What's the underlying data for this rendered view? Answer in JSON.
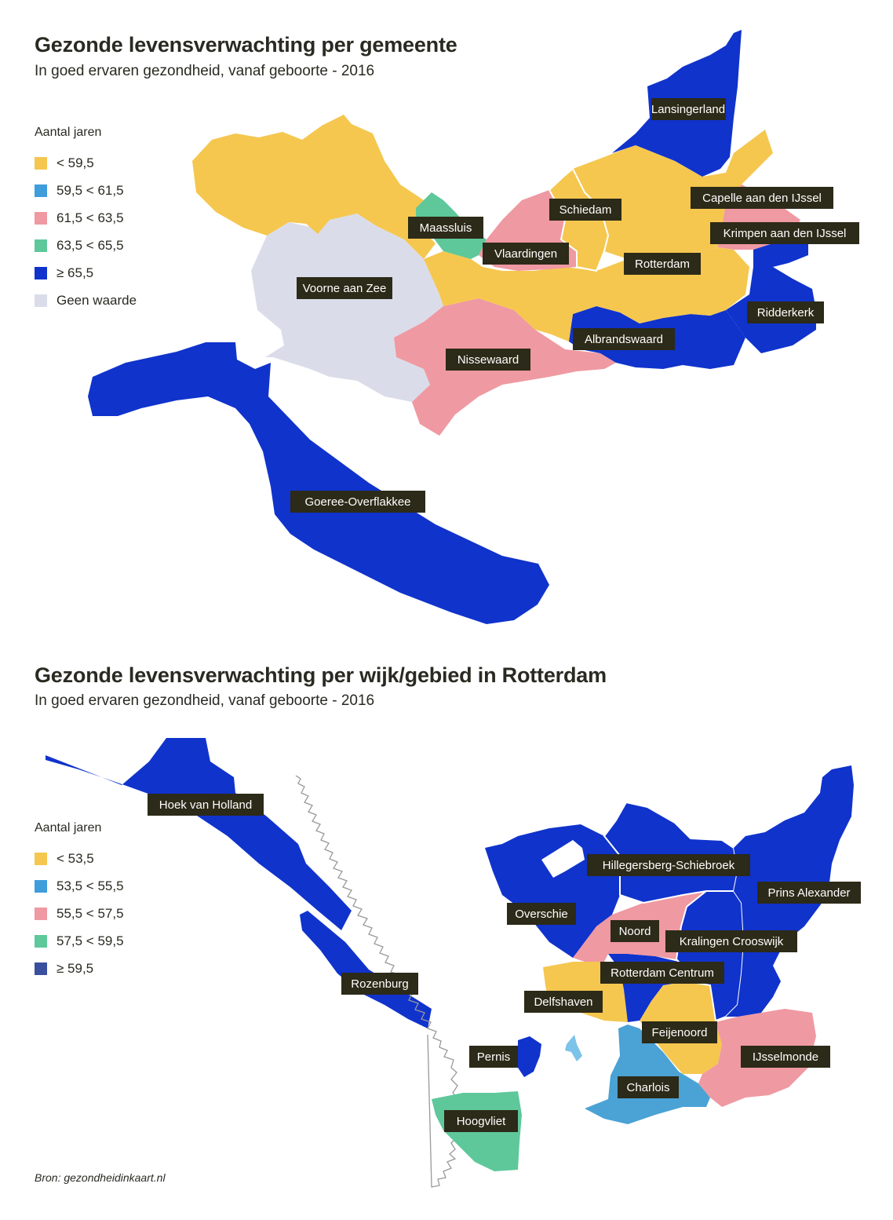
{
  "map1": {
    "title": "Gezonde levensverwachting per gemeente",
    "subtitle": "In goed ervaren gezondheid, vanaf geboorte - 2016",
    "legend_title": "Aantal jaren",
    "legend": [
      {
        "label": "< 59,5",
        "color": "#f5c74f"
      },
      {
        "label": "59,5 < 61,5",
        "color": "#3f9ddb"
      },
      {
        "label": "61,5 < 63,5",
        "color": "#ef99a2"
      },
      {
        "label": "63,5 < 65,5",
        "color": "#5ec89a"
      },
      {
        "label": "≥ 65,5",
        "color": "#1033cc"
      },
      {
        "label": "Geen waarde",
        "color": "#dadde9"
      }
    ],
    "regions": [
      {
        "name": "Lansingerland",
        "class": "≥ 65,5"
      },
      {
        "name": "Schiedam",
        "class": "< 59,5"
      },
      {
        "name": "Capelle aan den IJssel",
        "class": "61,5 < 63,5"
      },
      {
        "name": "Maassluis",
        "class": "63,5 < 65,5"
      },
      {
        "name": "Krimpen aan den IJssel",
        "class": "≥ 65,5"
      },
      {
        "name": "Vlaardingen",
        "class": "61,5 < 63,5"
      },
      {
        "name": "Rotterdam",
        "class": "< 59,5"
      },
      {
        "name": "Voorne aan Zee",
        "class": "Geen waarde"
      },
      {
        "name": "Ridderkerk",
        "class": "≥ 65,5"
      },
      {
        "name": "Albrandswaard",
        "class": "≥ 65,5"
      },
      {
        "name": "Nissewaard",
        "class": "61,5 < 63,5"
      },
      {
        "name": "Goeree-Overflakkee",
        "class": "≥ 65,5"
      }
    ]
  },
  "map2": {
    "title": "Gezonde levensverwachting per wijk/gebied in Rotterdam",
    "subtitle": "In goed ervaren gezondheid, vanaf geboorte - 2016",
    "legend_title": "Aantal jaren",
    "legend": [
      {
        "label": "< 53,5",
        "color": "#f5c74f"
      },
      {
        "label": "53,5 < 55,5",
        "color": "#3f9ddb"
      },
      {
        "label": "55,5 < 57,5",
        "color": "#ef99a2"
      },
      {
        "label": "57,5 < 59,5",
        "color": "#5ec89a"
      },
      {
        "label": "≥ 59,5",
        "color": "#3a4f9e"
      }
    ],
    "regions": [
      {
        "name": "Hoek van Holland",
        "class": "≥ 59,5"
      },
      {
        "name": "Hillegersberg-Schiebroek",
        "class": "≥ 59,5"
      },
      {
        "name": "Prins Alexander",
        "class": "≥ 59,5"
      },
      {
        "name": "Overschie",
        "class": "≥ 59,5"
      },
      {
        "name": "Noord",
        "class": "55,5 < 57,5"
      },
      {
        "name": "Kralingen Crooswijk",
        "class": "≥ 59,5"
      },
      {
        "name": "Rotterdam Centrum",
        "class": "≥ 59,5"
      },
      {
        "name": "Rozenburg",
        "class": "≥ 59,5"
      },
      {
        "name": "Delfshaven",
        "class": "< 53,5"
      },
      {
        "name": "Feijenoord",
        "class": "< 53,5"
      },
      {
        "name": "Pernis",
        "class": "≥ 59,5"
      },
      {
        "name": "IJsselmonde",
        "class": "55,5 < 57,5"
      },
      {
        "name": "Charlois",
        "class": "53,5 < 55,5"
      },
      {
        "name": "Hoogvliet",
        "class": "57,5 < 59,5"
      }
    ]
  },
  "source": "Bron: gezondheidinkaart.nl"
}
